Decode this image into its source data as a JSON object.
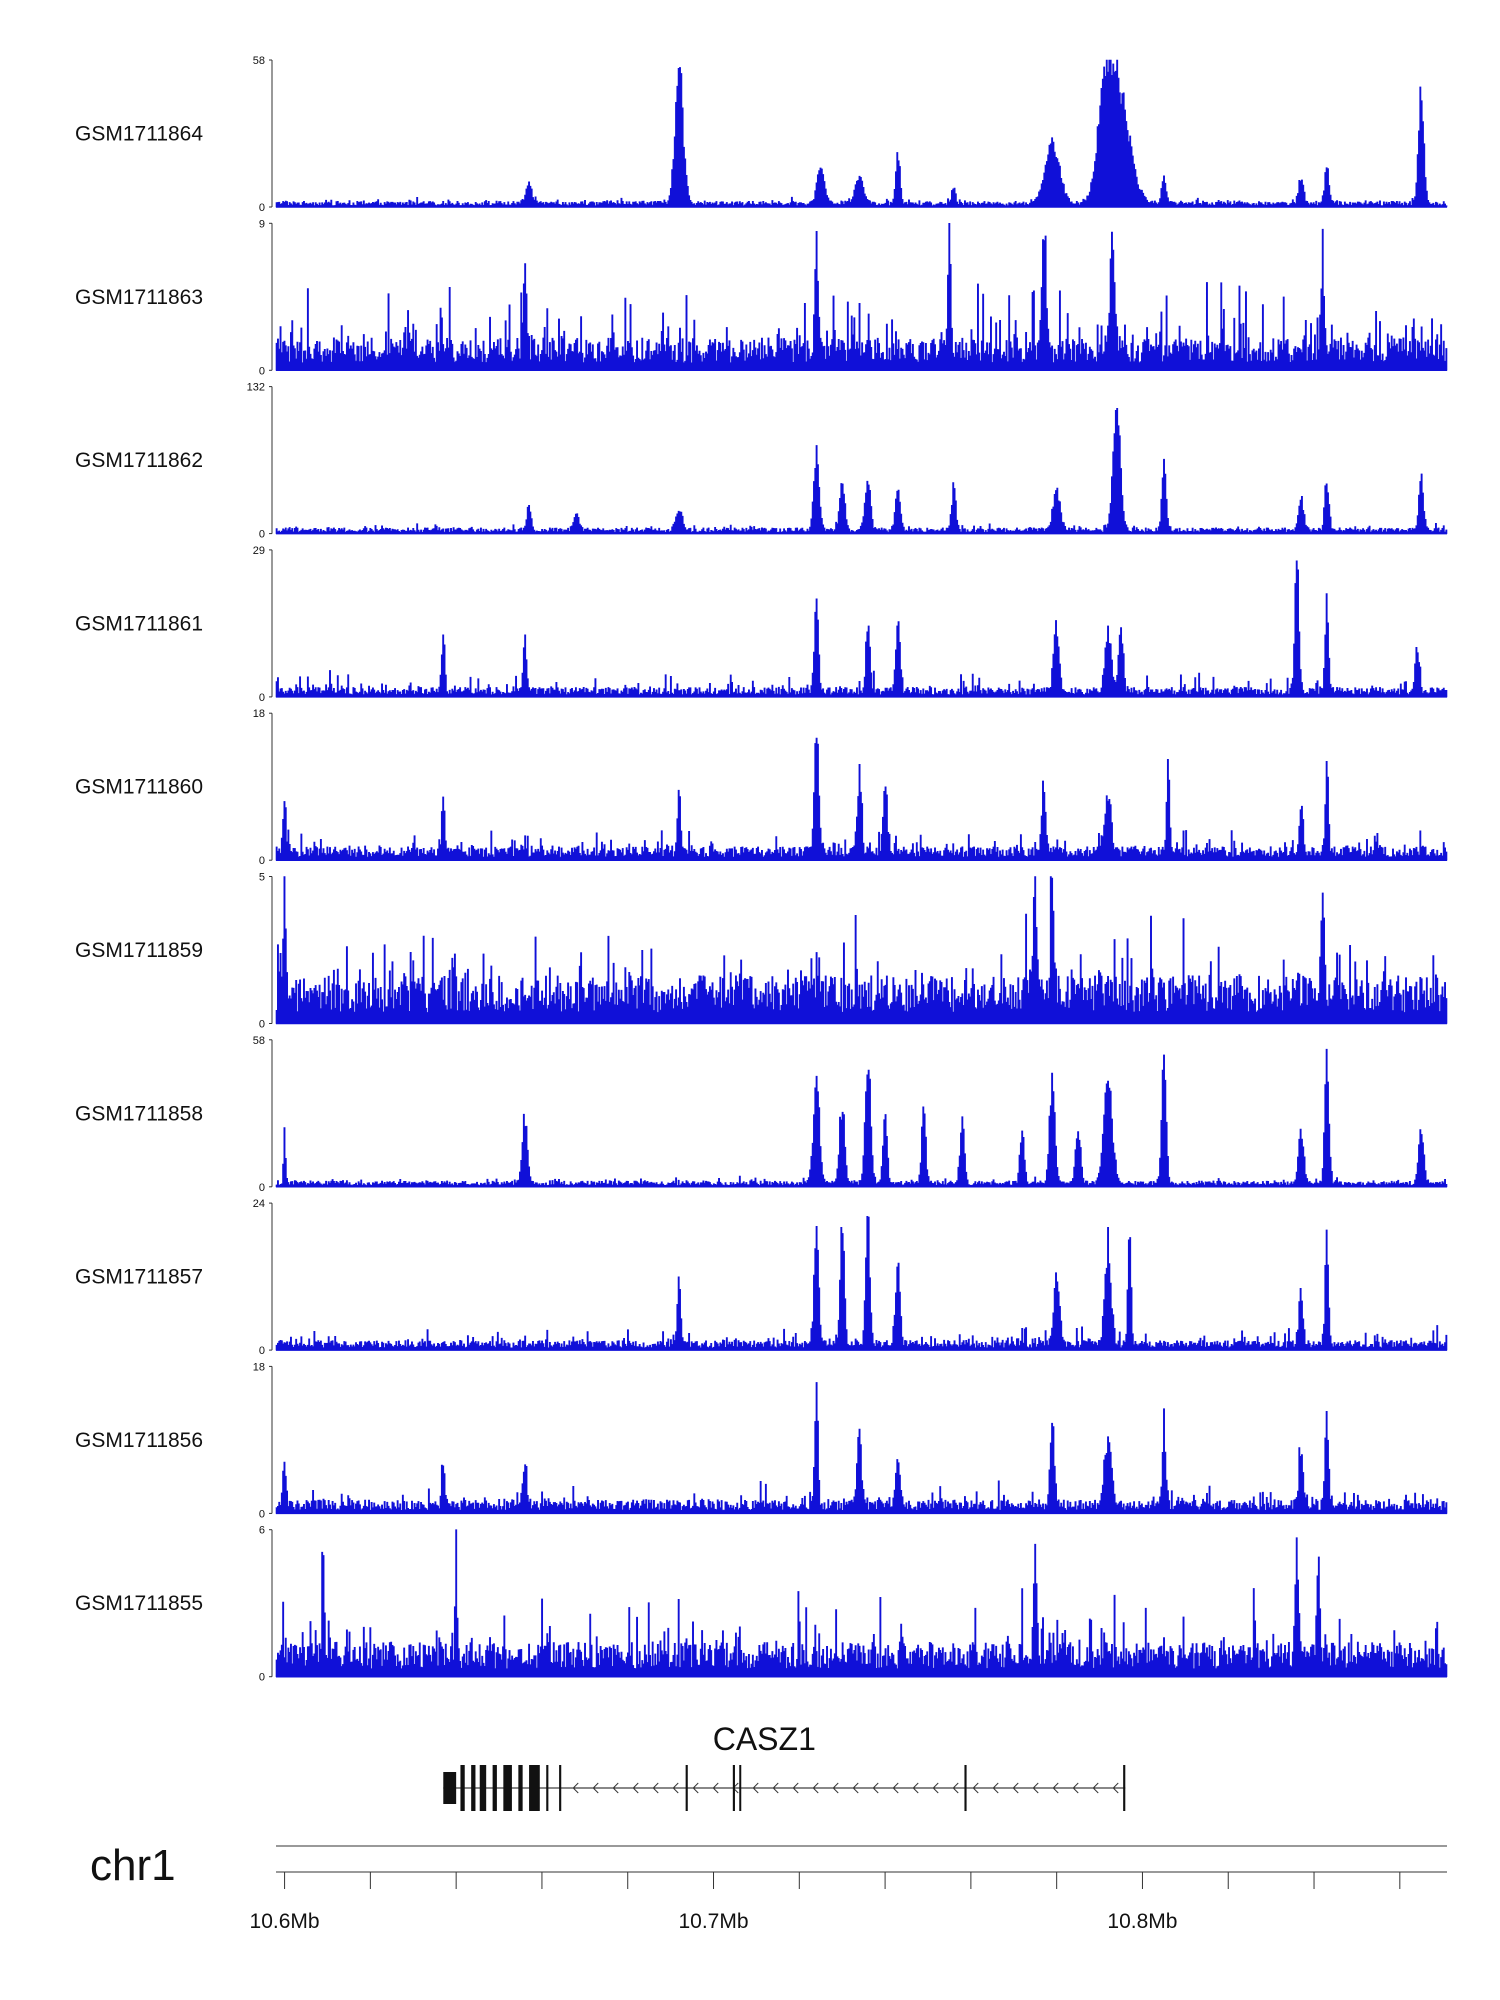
{
  "chart_data": {
    "type": "area",
    "title": "",
    "xlabel": "",
    "ylabel": "",
    "chromosome": "chr1",
    "xlim": [
      10.598,
      10.871
    ],
    "x_unit": "Mb",
    "x_ticks": [
      10.6,
      10.62,
      10.64,
      10.66,
      10.68,
      10.7,
      10.72,
      10.74,
      10.76,
      10.78,
      10.8,
      10.82,
      10.84,
      10.86
    ],
    "x_tick_labels": [
      {
        "value": 10.6,
        "text": "10.6Mb"
      },
      {
        "value": 10.7,
        "text": "10.7Mb"
      },
      {
        "value": 10.8,
        "text": "10.8Mb"
      }
    ],
    "series_color": "#1010d8",
    "series": [
      {
        "name": "GSM1711864",
        "ylim": [
          0,
          58
        ],
        "max_label": "58",
        "min_label": "0",
        "baseline": 0.03,
        "noise": 0.03,
        "peaks": [
          [
            10.657,
            0.15,
            0.6
          ],
          [
            10.692,
            0.98,
            0.8
          ],
          [
            10.725,
            0.28,
            0.7
          ],
          [
            10.734,
            0.22,
            0.8
          ],
          [
            10.743,
            0.4,
            0.4
          ],
          [
            10.756,
            0.12,
            0.4
          ],
          [
            10.779,
            0.45,
            1.4
          ],
          [
            10.791,
            0.5,
            1.2
          ],
          [
            10.794,
            0.95,
            2.2
          ],
          [
            10.805,
            0.22,
            0.4
          ],
          [
            10.837,
            0.2,
            0.5
          ],
          [
            10.843,
            0.3,
            0.4
          ],
          [
            10.865,
            0.88,
            0.5
          ]
        ]
      },
      {
        "name": "GSM1711863",
        "ylim": [
          0,
          9
        ],
        "max_label": "9",
        "min_label": "0",
        "baseline": 0.17,
        "noise": 0.45,
        "peaks": [
          [
            10.656,
            0.8,
            0.3
          ],
          [
            10.724,
            0.85,
            0.3
          ],
          [
            10.755,
            0.98,
            0.3
          ],
          [
            10.777,
            0.9,
            0.4
          ],
          [
            10.793,
            0.85,
            0.5
          ],
          [
            10.842,
            0.75,
            0.3
          ]
        ]
      },
      {
        "name": "GSM1711862",
        "ylim": [
          0,
          132
        ],
        "max_label": "132",
        "min_label": "0",
        "baseline": 0.03,
        "noise": 0.04,
        "peaks": [
          [
            10.657,
            0.2,
            0.4
          ],
          [
            10.668,
            0.12,
            0.5
          ],
          [
            10.692,
            0.15,
            0.6
          ],
          [
            10.724,
            0.6,
            0.5
          ],
          [
            10.73,
            0.35,
            0.5
          ],
          [
            10.736,
            0.4,
            0.5
          ],
          [
            10.743,
            0.3,
            0.5
          ],
          [
            10.756,
            0.33,
            0.4
          ],
          [
            10.78,
            0.3,
            0.7
          ],
          [
            10.794,
            0.98,
            0.7
          ],
          [
            10.805,
            0.5,
            0.4
          ],
          [
            10.837,
            0.25,
            0.5
          ],
          [
            10.843,
            0.4,
            0.4
          ],
          [
            10.865,
            0.42,
            0.4
          ]
        ]
      },
      {
        "name": "GSM1711861",
        "ylim": [
          0,
          29
        ],
        "max_label": "29",
        "min_label": "0",
        "baseline": 0.05,
        "noise": 0.12,
        "peaks": [
          [
            10.637,
            0.45,
            0.3
          ],
          [
            10.656,
            0.45,
            0.3
          ],
          [
            10.724,
            0.65,
            0.4
          ],
          [
            10.736,
            0.5,
            0.4
          ],
          [
            10.743,
            0.5,
            0.4
          ],
          [
            10.78,
            0.5,
            0.5
          ],
          [
            10.792,
            0.45,
            0.6
          ],
          [
            10.795,
            0.55,
            0.4
          ],
          [
            10.836,
            0.98,
            0.4
          ],
          [
            10.843,
            0.75,
            0.3
          ],
          [
            10.864,
            0.3,
            0.4
          ]
        ]
      },
      {
        "name": "GSM1711860",
        "ylim": [
          0,
          18
        ],
        "max_label": "18",
        "min_label": "0",
        "baseline": 0.07,
        "noise": 0.15,
        "peaks": [
          [
            10.6,
            0.4,
            0.3
          ],
          [
            10.637,
            0.4,
            0.3
          ],
          [
            10.692,
            0.5,
            0.3
          ],
          [
            10.724,
            0.98,
            0.4
          ],
          [
            10.734,
            0.6,
            0.4
          ],
          [
            10.74,
            0.5,
            0.4
          ],
          [
            10.777,
            0.5,
            0.4
          ],
          [
            10.792,
            0.45,
            0.6
          ],
          [
            10.806,
            0.65,
            0.3
          ],
          [
            10.837,
            0.4,
            0.3
          ],
          [
            10.843,
            0.65,
            0.3
          ]
        ]
      },
      {
        "name": "GSM1711859",
        "ylim": [
          0,
          5
        ],
        "max_label": "5",
        "min_label": "0",
        "baseline": 0.25,
        "noise": 0.5,
        "peaks": [
          [
            10.6,
            0.85,
            0.2
          ],
          [
            10.775,
            0.98,
            0.3
          ],
          [
            10.779,
            0.85,
            0.3
          ],
          [
            10.842,
            0.75,
            0.3
          ]
        ]
      },
      {
        "name": "GSM1711858",
        "ylim": [
          0,
          58
        ],
        "max_label": "58",
        "min_label": "0",
        "baseline": 0.03,
        "noise": 0.04,
        "peaks": [
          [
            10.6,
            0.4,
            0.2
          ],
          [
            10.656,
            0.5,
            0.5
          ],
          [
            10.724,
            0.72,
            0.6
          ],
          [
            10.73,
            0.6,
            0.5
          ],
          [
            10.736,
            0.98,
            0.5
          ],
          [
            10.74,
            0.55,
            0.4
          ],
          [
            10.749,
            0.55,
            0.4
          ],
          [
            10.758,
            0.5,
            0.4
          ],
          [
            10.772,
            0.45,
            0.4
          ],
          [
            10.779,
            0.85,
            0.5
          ],
          [
            10.785,
            0.4,
            0.5
          ],
          [
            10.792,
            0.8,
            0.8
          ],
          [
            10.805,
            0.98,
            0.4
          ],
          [
            10.837,
            0.4,
            0.5
          ],
          [
            10.843,
            0.98,
            0.4
          ],
          [
            10.865,
            0.4,
            0.5
          ]
        ]
      },
      {
        "name": "GSM1711857",
        "ylim": [
          0,
          24
        ],
        "max_label": "24",
        "min_label": "0",
        "baseline": 0.05,
        "noise": 0.12,
        "peaks": [
          [
            10.692,
            0.55,
            0.3
          ],
          [
            10.724,
            0.98,
            0.4
          ],
          [
            10.73,
            0.95,
            0.4
          ],
          [
            10.736,
            0.95,
            0.4
          ],
          [
            10.743,
            0.6,
            0.4
          ],
          [
            10.78,
            0.55,
            0.5
          ],
          [
            10.792,
            0.75,
            0.6
          ],
          [
            10.797,
            0.98,
            0.3
          ],
          [
            10.837,
            0.4,
            0.4
          ],
          [
            10.843,
            0.9,
            0.3
          ]
        ]
      },
      {
        "name": "GSM1711856",
        "ylim": [
          0,
          18
        ],
        "max_label": "18",
        "min_label": "0",
        "baseline": 0.07,
        "noise": 0.15,
        "peaks": [
          [
            10.6,
            0.4,
            0.3
          ],
          [
            10.637,
            0.3,
            0.3
          ],
          [
            10.656,
            0.35,
            0.4
          ],
          [
            10.724,
            0.98,
            0.3
          ],
          [
            10.734,
            0.55,
            0.4
          ],
          [
            10.743,
            0.4,
            0.4
          ],
          [
            10.779,
            0.65,
            0.4
          ],
          [
            10.792,
            0.5,
            0.7
          ],
          [
            10.805,
            0.6,
            0.3
          ],
          [
            10.837,
            0.4,
            0.4
          ],
          [
            10.843,
            0.75,
            0.3
          ]
        ]
      },
      {
        "name": "GSM1711855",
        "ylim": [
          0,
          6
        ],
        "max_label": "6",
        "min_label": "0",
        "baseline": 0.18,
        "noise": 0.45,
        "peaks": [
          [
            10.609,
            0.85,
            0.2
          ],
          [
            10.64,
            0.98,
            0.2
          ],
          [
            10.775,
            0.8,
            0.3
          ],
          [
            10.836,
            0.85,
            0.3
          ],
          [
            10.841,
            0.8,
            0.3
          ]
        ]
      }
    ],
    "gene_track": {
      "gene_name": "CASZ1",
      "strand": "-",
      "start": 10.637,
      "end": 10.796,
      "exons": [
        [
          10.637,
          10.64,
          2
        ],
        [
          10.641,
          10.642,
          1
        ],
        [
          10.6435,
          10.6445,
          1
        ],
        [
          10.6455,
          10.647,
          1
        ],
        [
          10.6485,
          10.6495,
          1
        ],
        [
          10.651,
          10.653,
          1
        ],
        [
          10.6545,
          10.6555,
          1
        ],
        [
          10.657,
          10.6595,
          1
        ],
        [
          10.661,
          10.6615,
          1
        ],
        [
          10.664,
          10.6645,
          1
        ],
        [
          10.6935,
          10.694,
          1
        ],
        [
          10.7045,
          10.705,
          1
        ],
        [
          10.706,
          10.7063,
          1
        ],
        [
          10.7585,
          10.759,
          1
        ],
        [
          10.7955,
          10.796,
          1
        ]
      ]
    }
  }
}
